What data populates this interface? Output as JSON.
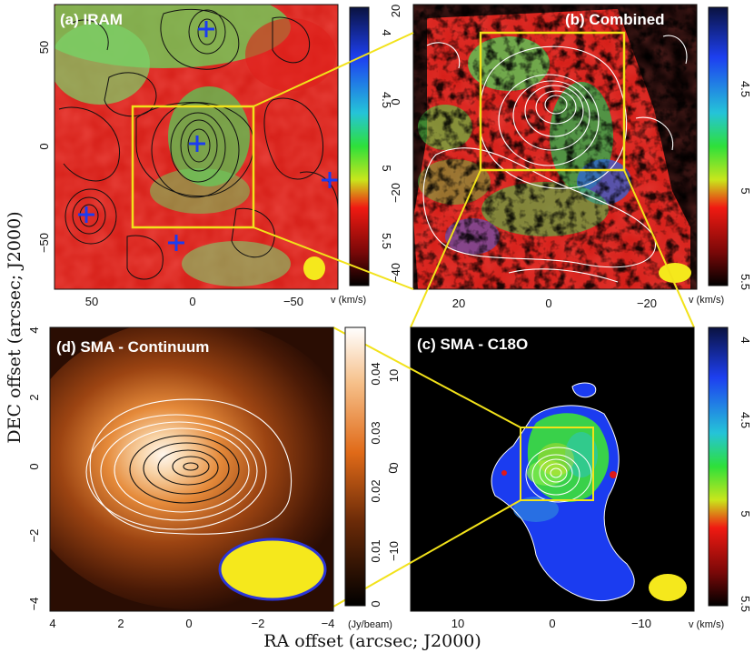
{
  "figure": {
    "ylabel": "DEC offset (arcsec; J2000)",
    "xlabel": "RA offset (arcsec; J2000)"
  },
  "chart_data": [
    {
      "type": "heatmap",
      "title": "(a) IRAM",
      "xticks": [
        "50",
        "0",
        "−50"
      ],
      "yticks": [
        "50",
        "0",
        "−50"
      ],
      "colorbar": {
        "ticks": [
          "4",
          "4.5",
          "5",
          "5.5"
        ],
        "label": "v (km/s)",
        "range": [
          4,
          5.8
        ],
        "colors": "blue-green-red-black"
      },
      "markers": "blue crosses"
    },
    {
      "type": "heatmap",
      "title": "(b) Combined",
      "xticks": [
        "20",
        "0",
        "−20"
      ],
      "yticks": [
        "20",
        "0",
        "−20",
        "−40"
      ],
      "colorbar": {
        "ticks": [
          "4.5",
          "5",
          "5.5"
        ],
        "label": "v (km/s)",
        "range": [
          4.2,
          5.5
        ],
        "colors": "blue-green-red-black"
      }
    },
    {
      "type": "heatmap",
      "title": "(c) SMA - C18O",
      "xticks": [
        "10",
        "0",
        "−10"
      ],
      "yticks": [
        "0"
      ],
      "colorbar": {
        "ticks": [
          "4",
          "4.5",
          "5",
          "5.5"
        ],
        "label": "v (km/s)",
        "range": [
          4,
          5.5
        ],
        "colors": "blue-green-red-black"
      }
    },
    {
      "type": "heatmap",
      "title": "(d) SMA - Continuum",
      "xticks": [
        "4",
        "2",
        "0",
        "−2",
        "−4"
      ],
      "yticks": [
        "4",
        "2",
        "0",
        "−2",
        "−4"
      ],
      "colorbar": {
        "ticks": [
          "0",
          "0.01",
          "0.02",
          "0.03",
          "0.04"
        ],
        "label": "(Jy/beam)",
        "range": [
          0,
          0.048
        ],
        "colors": "black-orange-white"
      },
      "secondary_ticks": [
        "10",
        "0",
        "−10"
      ]
    }
  ],
  "colors": {
    "yellow": "#f2e21a",
    "blue": "#1b3cf0",
    "red": "#e01818",
    "green": "#4fd64a",
    "orange": "#e27522"
  }
}
